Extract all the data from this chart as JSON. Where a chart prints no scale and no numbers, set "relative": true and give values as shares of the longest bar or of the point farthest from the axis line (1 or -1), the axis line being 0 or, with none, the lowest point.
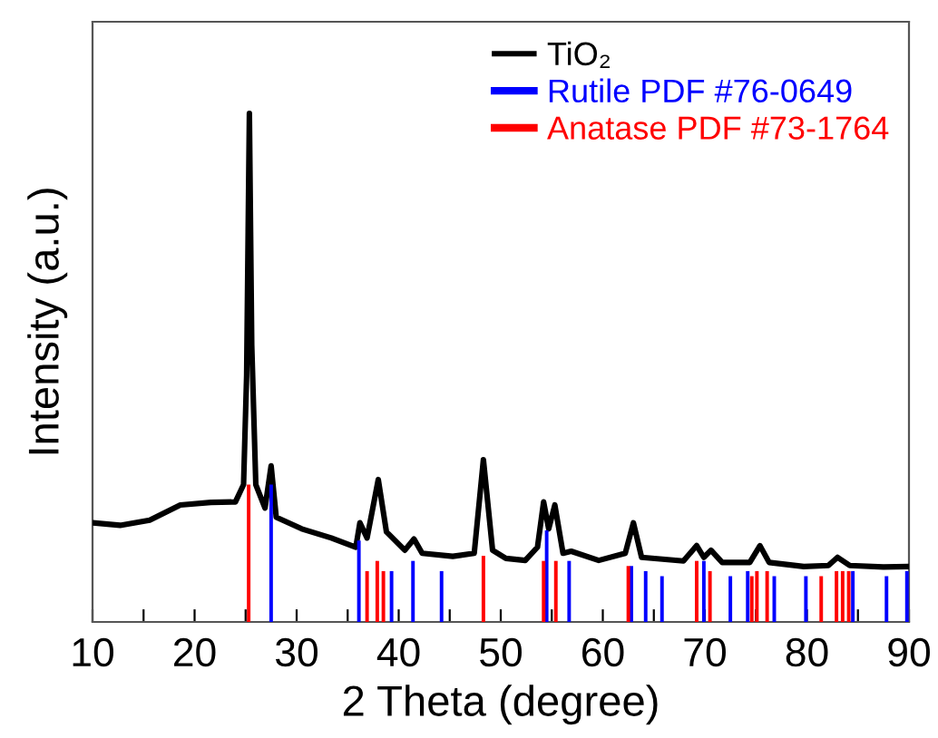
{
  "chart_data": {
    "type": "line",
    "relative": true,
    "xlabel": "2 Theta (degree)",
    "ylabel": "Intensity (a.u.)",
    "xlim": [
      10,
      90
    ],
    "xticks": [
      10,
      {
        "value": 15,
        "label": null
      },
      20,
      {
        "value": 25,
        "label": null
      },
      30,
      {
        "value": 35,
        "label": null
      },
      40,
      {
        "value": 45,
        "label": null
      },
      50,
      {
        "value": 55,
        "label": null
      },
      60,
      {
        "value": 65,
        "label": null
      },
      70,
      {
        "value": 75,
        "label": null
      },
      80,
      {
        "value": 85,
        "label": null
      },
      90
    ],
    "tick_labels": "x",
    "grid": false,
    "legend": "top right",
    "marker": "none",
    "line_style": "solid",
    "series": [
      {
        "name": "TiO₂",
        "color": "#000000",
        "x": [
          10,
          12.7,
          15.6,
          18.6,
          21.6,
          24.0,
          24.8,
          25.1,
          25.37,
          25.6,
          26.0,
          26.9,
          27.5,
          28.0,
          30.5,
          33.4,
          35.8,
          36.2,
          36.9,
          38.0,
          38.8,
          40.6,
          41.5,
          42.3,
          45.3,
          47.4,
          48.3,
          49.2,
          50.5,
          52.4,
          53.6,
          54.2,
          54.7,
          55.3,
          56.1,
          56.9,
          59.6,
          62.2,
          63.0,
          63.8,
          67.9,
          69.2,
          69.9,
          70.6,
          71.7,
          74.4,
          75.4,
          76.3,
          79.7,
          82.1,
          83.0,
          84.2,
          87.5,
          90
        ],
        "values": [
          0.195,
          0.19,
          0.2,
          0.23,
          0.235,
          0.236,
          0.27,
          0.485,
          1.0,
          0.545,
          0.27,
          0.224,
          0.307,
          0.206,
          0.183,
          0.165,
          0.147,
          0.195,
          0.165,
          0.28,
          0.177,
          0.141,
          0.163,
          0.135,
          0.129,
          0.135,
          0.319,
          0.141,
          0.125,
          0.121,
          0.147,
          0.236,
          0.183,
          0.23,
          0.135,
          0.139,
          0.121,
          0.135,
          0.195,
          0.127,
          0.12,
          0.15,
          0.127,
          0.141,
          0.117,
          0.117,
          0.15,
          0.117,
          0.109,
          0.111,
          0.127,
          0.111,
          0.108,
          0.109
        ]
      },
      {
        "name": "Rutile PDF #76-0649",
        "type": "bar",
        "color": "#0000ff",
        "x": [
          27.5,
          36.1,
          39.3,
          41.4,
          44.2,
          54.5,
          56.7,
          62.8,
          64.2,
          65.8,
          69.9,
          72.5,
          74.2,
          76.8,
          79.9,
          84.5,
          87.8,
          89.8
        ],
        "values": [
          0.27,
          0.16,
          0.1,
          0.12,
          0.1,
          0.18,
          0.12,
          0.11,
          0.1,
          0.09,
          0.12,
          0.09,
          0.1,
          0.09,
          0.09,
          0.1,
          0.09,
          0.1
        ]
      },
      {
        "name": "Anatase PDF #73-1764",
        "type": "bar",
        "color": "#ff0000",
        "x": [
          25.3,
          36.9,
          37.9,
          38.5,
          48.3,
          54.2,
          55.4,
          62.5,
          69.2,
          70.5,
          74.6,
          75.1,
          76.1,
          81.4,
          82.9,
          83.5,
          84.1
        ],
        "values": [
          0.27,
          0.1,
          0.12,
          0.1,
          0.13,
          0.12,
          0.12,
          0.11,
          0.12,
          0.1,
          0.09,
          0.1,
          0.1,
          0.09,
          0.1,
          0.1,
          0.1
        ]
      }
    ]
  }
}
